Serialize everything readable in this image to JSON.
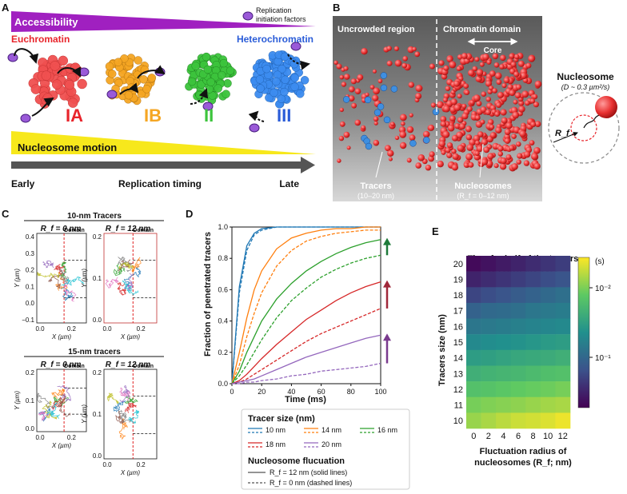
{
  "panel_a": {
    "letter": "A",
    "accessibility": "Accessibility",
    "replication_factors": [
      "Replication",
      "initiation factors"
    ],
    "euchromatin": "Euchromatin",
    "heterochromatin": "Heterochromatin",
    "classes": [
      "IA",
      "IB",
      "II",
      "III"
    ],
    "nucleosome_motion": "Nucleosome motion",
    "early": "Early",
    "replication_timing": "Replication timing",
    "late": "Late",
    "colors": {
      "accessibility": "#a020c0",
      "euchromatin": "#e8242b",
      "heterochromatin": "#2a5cd8",
      "motion": "#f7e81c",
      "IA": "#f05050",
      "IB": "#f5a623",
      "II": "#3cc43c",
      "III": "#3c8cf0"
    }
  },
  "panel_b": {
    "letter": "B",
    "uncrowded": "Uncrowded region",
    "chromatin_domain": "Chromatin domain",
    "core": "Core",
    "tracers_label": "Tracers",
    "tracers_size": "(10–20 nm)",
    "nucleosomes_label": "Nucleosomes",
    "nucleosomes_size": "(R_f = 0–12 nm)",
    "nucleosome_title": "Nucleosome",
    "diffusion": "(D ~ 0.3 µm²/s)",
    "rf_label": "R_f"
  },
  "panel_c": {
    "letter": "C",
    "header_10": "10-nm Tracers",
    "header_15": "15-nm tracers",
    "rf0": "R_f = 0 nm",
    "rf12": "R_f = 12 nm",
    "domain": "Domain",
    "xlabel": "X (µm)",
    "ylabel": "Y (µm)",
    "plots": [
      {
        "yticks": [
          "0.4",
          "0.3",
          "0.2",
          "0.1",
          "0.0",
          "−0.1"
        ],
        "xticks": [
          "0.0",
          "0.2"
        ]
      },
      {
        "yticks": [
          "0.2",
          "0.1",
          "0.0"
        ],
        "xticks": [
          "0.0",
          "0.2"
        ]
      },
      {
        "yticks": [
          "0.2",
          "0.1",
          "0.0"
        ],
        "xticks": [
          "0.0",
          "0.2"
        ]
      },
      {
        "yticks": [
          "0.2",
          "0.1",
          "0.0"
        ],
        "xticks": [
          "0.0",
          "0.2"
        ]
      }
    ]
  },
  "chart_data": [
    {
      "type": "line",
      "panel": "D",
      "title": "",
      "xlabel": "Time (ms)",
      "ylabel": "Fraction of penetrated tracers",
      "xlim": [
        0,
        100
      ],
      "ylim": [
        0,
        1.0
      ],
      "xticks": [
        "0",
        "20",
        "40",
        "60",
        "80",
        "100"
      ],
      "yticks": [
        "0.0",
        "0.2",
        "0.4",
        "0.6",
        "0.8",
        "1.0"
      ],
      "x": [
        0,
        5,
        10,
        15,
        20,
        30,
        40,
        50,
        60,
        70,
        80,
        90,
        100
      ],
      "series": [
        {
          "name": "10 nm",
          "style": "solid",
          "color": "#1f77b4",
          "values": [
            0,
            0.62,
            0.88,
            0.96,
            0.99,
            1.0,
            1.0,
            1.0,
            1.0,
            1.0,
            1.0,
            1.0,
            1.0
          ]
        },
        {
          "name": "10 nm",
          "style": "dashed",
          "color": "#1f77b4",
          "values": [
            0,
            0.58,
            0.85,
            0.95,
            0.98,
            1.0,
            1.0,
            1.0,
            1.0,
            1.0,
            1.0,
            1.0,
            1.0
          ]
        },
        {
          "name": "14 nm",
          "style": "solid",
          "color": "#ff7f0e",
          "values": [
            0,
            0.2,
            0.42,
            0.6,
            0.72,
            0.86,
            0.93,
            0.96,
            0.98,
            0.99,
            0.99,
            1.0,
            1.0
          ]
        },
        {
          "name": "14 nm",
          "style": "dashed",
          "color": "#ff7f0e",
          "values": [
            0,
            0.12,
            0.3,
            0.45,
            0.58,
            0.75,
            0.85,
            0.91,
            0.94,
            0.96,
            0.97,
            0.98,
            0.98
          ]
        },
        {
          "name": "16 nm",
          "style": "solid",
          "color": "#2ca02c",
          "values": [
            0,
            0.08,
            0.2,
            0.3,
            0.4,
            0.54,
            0.64,
            0.72,
            0.78,
            0.83,
            0.87,
            0.9,
            0.92
          ]
        },
        {
          "name": "16 nm",
          "style": "dashed",
          "color": "#2ca02c",
          "values": [
            0,
            0.05,
            0.12,
            0.2,
            0.28,
            0.42,
            0.53,
            0.61,
            0.68,
            0.73,
            0.77,
            0.8,
            0.82
          ]
        },
        {
          "name": "18 nm",
          "style": "solid",
          "color": "#d62728",
          "values": [
            0,
            0.02,
            0.06,
            0.11,
            0.16,
            0.25,
            0.33,
            0.41,
            0.47,
            0.53,
            0.58,
            0.62,
            0.65
          ]
        },
        {
          "name": "18 nm",
          "style": "dashed",
          "color": "#d62728",
          "values": [
            0,
            0.01,
            0.03,
            0.06,
            0.09,
            0.15,
            0.21,
            0.27,
            0.32,
            0.36,
            0.4,
            0.44,
            0.48
          ]
        },
        {
          "name": "20 nm",
          "style": "solid",
          "color": "#9467bd",
          "values": [
            0,
            0.01,
            0.02,
            0.03,
            0.05,
            0.09,
            0.13,
            0.17,
            0.2,
            0.23,
            0.26,
            0.29,
            0.31
          ]
        },
        {
          "name": "20 nm",
          "style": "dashed",
          "color": "#9467bd",
          "values": [
            0,
            0.0,
            0.01,
            0.01,
            0.02,
            0.03,
            0.05,
            0.06,
            0.08,
            0.09,
            0.1,
            0.11,
            0.13
          ]
        }
      ],
      "arrows": [
        {
          "color": "#1e7a3a",
          "from": 0.82,
          "to": 0.92
        },
        {
          "color": "#a0283a",
          "from": 0.48,
          "to": 0.65
        },
        {
          "color": "#7a3a8e",
          "from": 0.13,
          "to": 0.31
        }
      ],
      "legend": {
        "title": "Tracer size (nm)",
        "entries": [
          {
            "label": "10 nm",
            "color": "#1f77b4"
          },
          {
            "label": "14 nm",
            "color": "#ff7f0e"
          },
          {
            "label": "16 nm",
            "color": "#2ca02c"
          },
          {
            "label": "18 nm",
            "color": "#d62728"
          },
          {
            "label": "20 nm",
            "color": "#9467bd"
          }
        ],
        "fluctuation_title": "Nucleosome flucuation",
        "solid_label": "R_f = 12 nm (solid lines)",
        "dashed_label": "R_f = 0 nm (dashed lines)"
      }
    },
    {
      "type": "heatmap",
      "panel": "E",
      "title": "Time for half of the tracers to reach the core",
      "xlabel": "Fluctuation radius of nucleosomes (R_f; nm)",
      "ylabel": "Tracers size (nm)",
      "x": [
        "0",
        "2",
        "4",
        "6",
        "8",
        "10",
        "12"
      ],
      "y": [
        "20",
        "19",
        "18",
        "17",
        "16",
        "15",
        "14",
        "13",
        "12",
        "11",
        "10"
      ],
      "colorbar_unit": "(s)",
      "colorbar_ticks": [
        "10⁻²",
        "10⁻¹"
      ],
      "values_log10": [
        [
          -0.9,
          -0.95,
          -1.0,
          -1.05,
          -1.1,
          -1.15,
          -1.2
        ],
        [
          -1.05,
          -1.1,
          -1.15,
          -1.2,
          -1.25,
          -1.3,
          -1.35
        ],
        [
          -1.25,
          -1.3,
          -1.35,
          -1.4,
          -1.45,
          -1.5,
          -1.55
        ],
        [
          -1.45,
          -1.5,
          -1.52,
          -1.55,
          -1.6,
          -1.62,
          -1.65
        ],
        [
          -1.6,
          -1.62,
          -1.65,
          -1.68,
          -1.7,
          -1.72,
          -1.75
        ],
        [
          -1.75,
          -1.78,
          -1.8,
          -1.82,
          -1.85,
          -1.88,
          -1.9
        ],
        [
          -1.9,
          -1.92,
          -1.95,
          -1.98,
          -2.0,
          -2.02,
          -2.05
        ],
        [
          -2.05,
          -2.08,
          -2.1,
          -2.12,
          -2.15,
          -2.18,
          -2.2
        ],
        [
          -2.2,
          -2.22,
          -2.25,
          -2.28,
          -2.3,
          -2.32,
          -2.35
        ],
        [
          -2.35,
          -2.38,
          -2.4,
          -2.42,
          -2.45,
          -2.48,
          -2.5
        ],
        [
          -2.45,
          -2.5,
          -2.55,
          -2.6,
          -2.62,
          -2.65,
          -2.7
        ]
      ],
      "color_range_log10": [
        -0.85,
        -2.75
      ]
    }
  ],
  "panel_d_letter": "D",
  "panel_e_letter": "E"
}
